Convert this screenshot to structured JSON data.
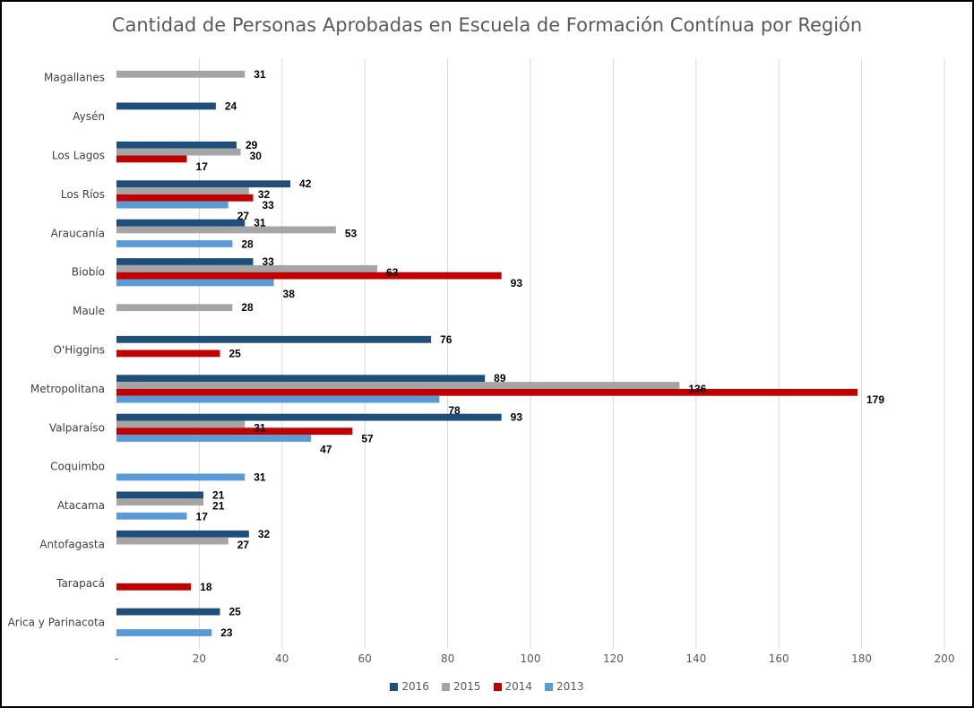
{
  "chart_data": {
    "type": "bar",
    "orientation": "horizontal",
    "title": "Cantidad de Personas Aprobadas en Escuela de Formación Contínua por Región",
    "xlabel": "",
    "ylabel": "",
    "xlim": [
      0,
      200
    ],
    "x_ticks": [
      "-",
      "20",
      "40",
      "60",
      "80",
      "100",
      "120",
      "140",
      "160",
      "180",
      "200"
    ],
    "x_tick_values": [
      0,
      20,
      40,
      60,
      80,
      100,
      120,
      140,
      160,
      180,
      200
    ],
    "grid": "vertical",
    "legend_position": "bottom",
    "categories": [
      "Magallanes",
      "Aysén",
      "Los Lagos",
      "Los Ríos",
      "Araucanía",
      "Biobío",
      "Maule",
      "O'Higgins",
      "Metropolitana",
      "Valparaíso",
      "Coquimbo",
      "Atacama",
      "Antofagasta",
      "Tarapacá",
      "Arica y Parinacota"
    ],
    "series": [
      {
        "name": "2016",
        "color": "#1f4e79",
        "values": [
          null,
          24,
          29,
          42,
          31,
          33,
          null,
          76,
          89,
          93,
          null,
          21,
          32,
          null,
          25
        ]
      },
      {
        "name": "2015",
        "color": "#a5a5a5",
        "values": [
          31,
          null,
          30,
          32,
          53,
          63,
          28,
          null,
          136,
          31,
          null,
          21,
          27,
          null,
          null
        ]
      },
      {
        "name": "2014",
        "color": "#c00000",
        "values": [
          null,
          null,
          17,
          33,
          null,
          93,
          null,
          25,
          179,
          57,
          null,
          null,
          null,
          18,
          null
        ]
      },
      {
        "name": "2013",
        "color": "#5b9bd5",
        "values": [
          null,
          null,
          null,
          27,
          28,
          38,
          null,
          null,
          78,
          47,
          31,
          17,
          null,
          null,
          23
        ]
      }
    ]
  }
}
